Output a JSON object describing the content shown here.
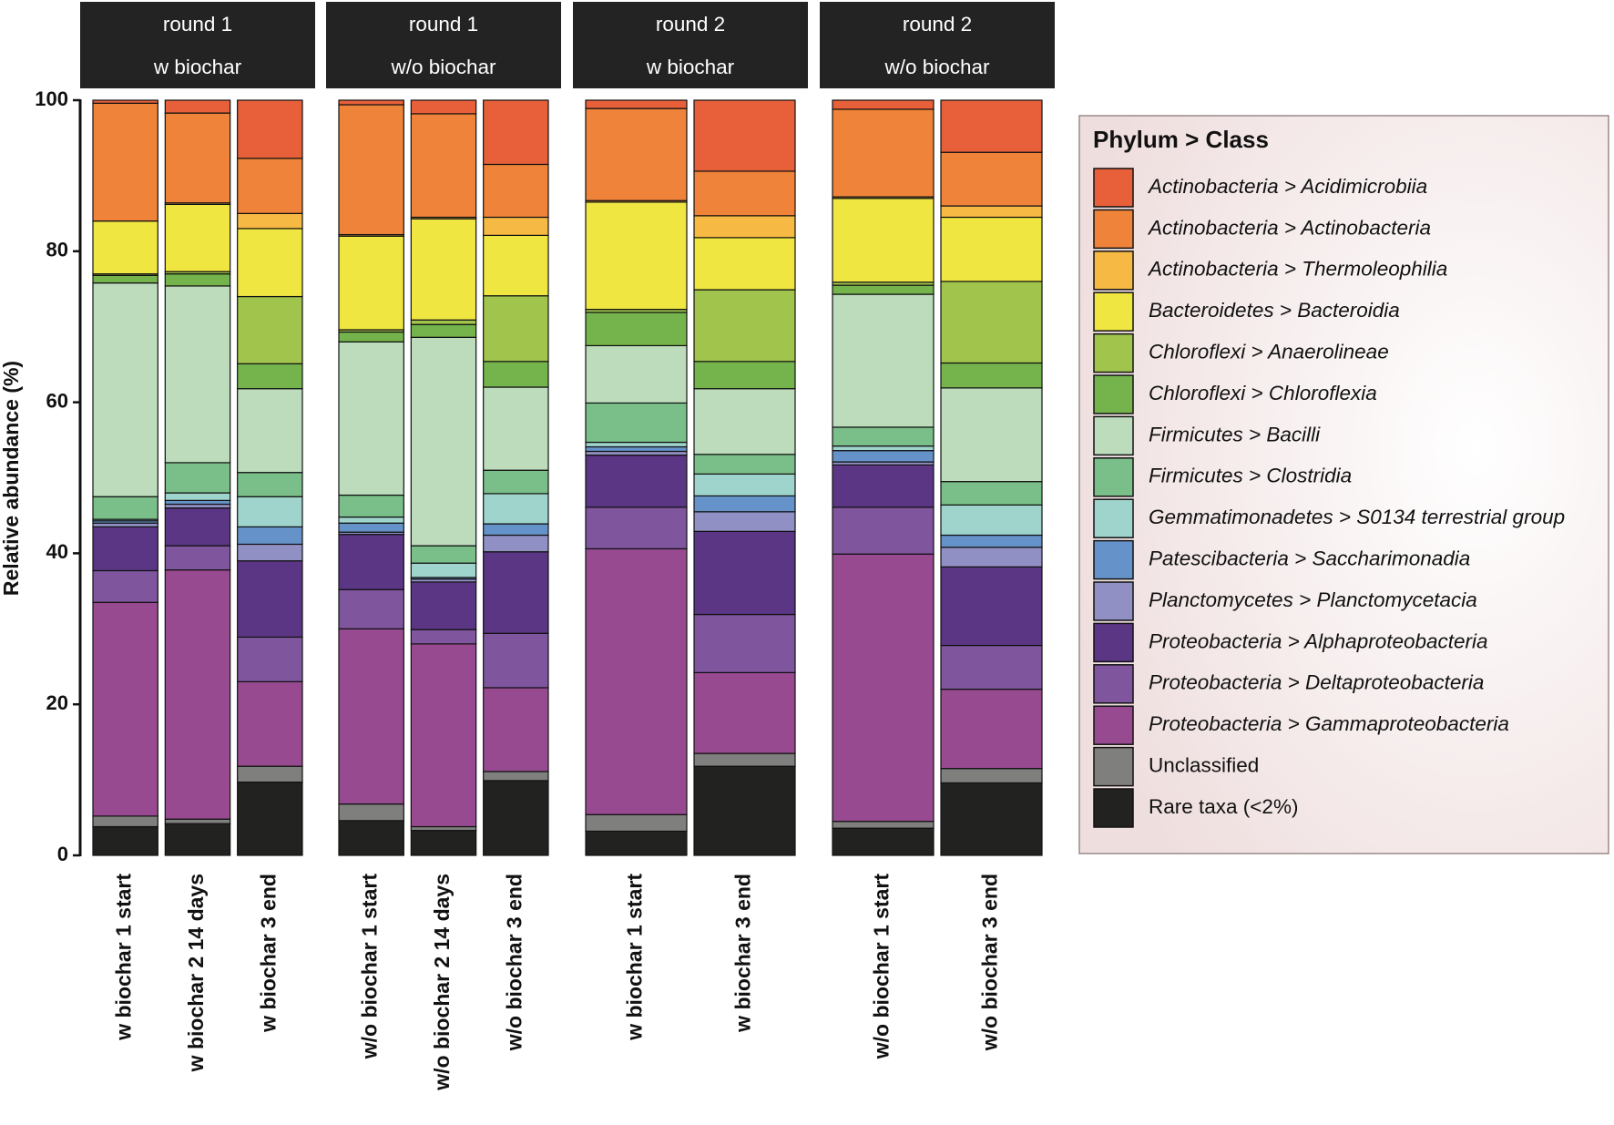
{
  "chart_data": {
    "type": "bar",
    "stacked": true,
    "ylabel": "Relative abundance (%)",
    "ylim": [
      0,
      100
    ],
    "yticks": [
      0,
      20,
      40,
      60,
      80,
      100
    ],
    "legend_title": "Phylum > Class",
    "legend_position": "right",
    "facets": [
      {
        "strip": [
          "round 1",
          "w biochar"
        ],
        "categories": [
          "w biochar 1 start",
          "w biochar 2 14 days",
          "w biochar 3 end"
        ]
      },
      {
        "strip": [
          "round 1",
          "w/o biochar"
        ],
        "categories": [
          "w/o biochar 1 start",
          "w/o biochar 2 14 days",
          "w/o biochar 3 end"
        ]
      },
      {
        "strip": [
          "round 2",
          "w biochar"
        ],
        "categories": [
          "w biochar 1 start",
          "w biochar 3 end"
        ]
      },
      {
        "strip": [
          "round 2",
          "w/o biochar"
        ],
        "categories": [
          "w/o biochar 1 start",
          "w/o biochar 3 end"
        ]
      }
    ],
    "series": [
      {
        "name": "Actinobacteria > Acidimicrobiia",
        "color": "#e8603a",
        "values": [
          0.4,
          1.7,
          7.7,
          0.6,
          1.8,
          8.5,
          1.1,
          9.4,
          1.2,
          6.9
        ]
      },
      {
        "name": "Actinobacteria > Actinobacteria",
        "color": "#ee8339",
        "values": [
          15.6,
          11.9,
          7.3,
          17.2,
          13.7,
          7.0,
          12.2,
          5.9,
          11.6,
          7.1
        ]
      },
      {
        "name": "Actinobacteria > Thermoleophilia",
        "color": "#f6b944",
        "values": [
          0,
          0.2,
          2.0,
          0.2,
          0.2,
          2.4,
          0.2,
          2.9,
          0.2,
          1.5
        ]
      },
      {
        "name": "Bacteroidetes > Bacteroidia",
        "color": "#efe642",
        "values": [
          7.0,
          8.9,
          9.0,
          12.4,
          13.4,
          8.0,
          14.2,
          6.9,
          11.1,
          8.5
        ]
      },
      {
        "name": "Chloroflexi > Anaerolineae",
        "color": "#a1c44d",
        "values": [
          0.2,
          0.3,
          8.9,
          0.3,
          0.6,
          8.7,
          0.4,
          9.5,
          0.4,
          10.8
        ]
      },
      {
        "name": "Chloroflexi > Chloroflexia",
        "color": "#75b44c",
        "values": [
          1.0,
          1.6,
          3.3,
          1.3,
          1.7,
          3.4,
          4.4,
          3.6,
          1.2,
          3.3
        ]
      },
      {
        "name": "Firmicutes > Bacilli",
        "color": "#bcdcbc",
        "values": [
          28.3,
          23.4,
          11.1,
          20.3,
          27.6,
          11.0,
          7.6,
          8.7,
          17.6,
          12.4
        ]
      },
      {
        "name": "Firmicutes > Clostridia",
        "color": "#7abf8a",
        "values": [
          3.0,
          4.0,
          3.2,
          2.9,
          2.3,
          3.1,
          5.2,
          2.6,
          2.5,
          3.1
        ]
      },
      {
        "name": "Gemmatimonadetes > S0134 terrestrial group",
        "color": "#9ed4cc",
        "values": [
          0.2,
          1.0,
          4.0,
          0.8,
          1.9,
          4.0,
          0.6,
          2.9,
          0.6,
          4.0
        ]
      },
      {
        "name": "Patescibacteria > Saccharimonadia",
        "color": "#6593c9",
        "values": [
          0.3,
          0.5,
          2.3,
          1.2,
          0.2,
          1.5,
          0.6,
          2.1,
          1.5,
          1.6
        ]
      },
      {
        "name": "Planctomycetes > Planctomycetacia",
        "color": "#9190c4",
        "values": [
          0.5,
          0.5,
          2.2,
          0.3,
          0.4,
          2.2,
          0.5,
          2.6,
          0.4,
          2.6
        ]
      },
      {
        "name": "Proteobacteria > Alphaproteobacteria",
        "color": "#5b3685",
        "values": [
          5.8,
          5.0,
          10.1,
          7.3,
          6.3,
          10.8,
          6.9,
          11.0,
          5.6,
          10.4
        ]
      },
      {
        "name": "Proteobacteria > Deltaproteobacteria",
        "color": "#7f559e",
        "values": [
          4.2,
          3.2,
          5.9,
          5.2,
          1.9,
          7.2,
          5.5,
          7.7,
          6.2,
          5.8
        ]
      },
      {
        "name": "Proteobacteria > Gammaproteobacteria",
        "color": "#974a90",
        "values": [
          28.3,
          33.0,
          11.2,
          23.2,
          24.2,
          11.1,
          35.2,
          10.7,
          35.4,
          10.5
        ]
      },
      {
        "name": "Unclassified",
        "color": "#7f7f7e",
        "values": [
          1.4,
          0.6,
          2.1,
          2.2,
          0.5,
          1.2,
          2.2,
          1.7,
          0.9,
          1.9
        ]
      },
      {
        "name": "Rare taxa (<2%)",
        "color": "#222220",
        "values": [
          3.8,
          4.2,
          9.7,
          4.6,
          3.3,
          9.9,
          3.2,
          11.8,
          3.6,
          9.6
        ]
      }
    ]
  }
}
